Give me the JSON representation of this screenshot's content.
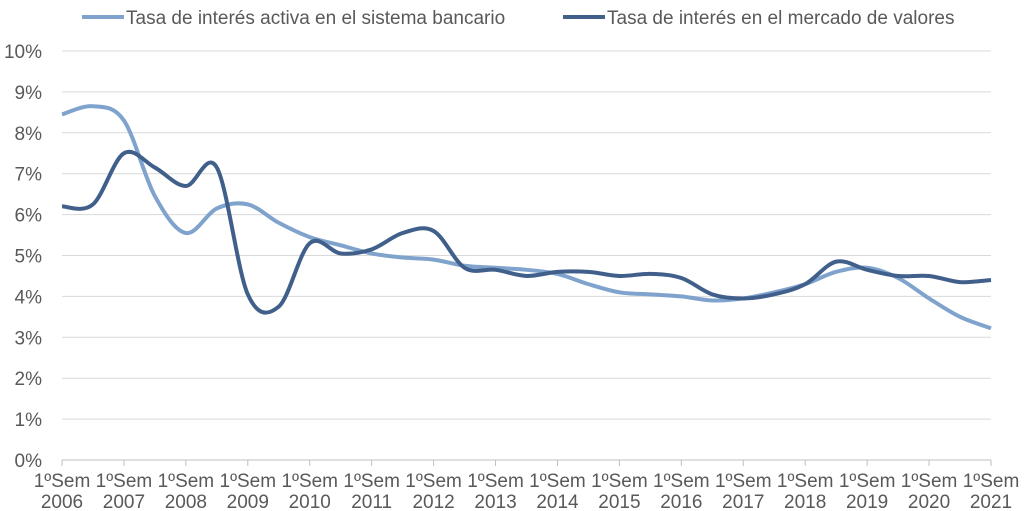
{
  "chart_data": {
    "type": "line",
    "title": "",
    "xlabel": "",
    "ylabel": "",
    "categories": [
      [
        "1ºSem",
        "2006"
      ],
      [
        "1ºSem",
        "2007"
      ],
      [
        "1ºSem",
        "2008"
      ],
      [
        "1ºSem",
        "2009"
      ],
      [
        "1ºSem",
        "2010"
      ],
      [
        "1ºSem",
        "2011"
      ],
      [
        "1ºSem",
        "2012"
      ],
      [
        "1ºSem",
        "2013"
      ],
      [
        "1ºSem",
        "2014"
      ],
      [
        "1ºSem",
        "2015"
      ],
      [
        "1ºSem",
        "2016"
      ],
      [
        "1ºSem",
        "2017"
      ],
      [
        "1ºSem",
        "2018"
      ],
      [
        "1ºSem",
        "2019"
      ],
      [
        "1ºSem",
        "2020"
      ],
      [
        "1ºSem",
        "2021"
      ]
    ],
    "x": [
      2006.0,
      2006.5,
      2007.0,
      2007.5,
      2008.0,
      2008.5,
      2009.0,
      2009.5,
      2010.0,
      2010.5,
      2011.0,
      2011.5,
      2012.0,
      2012.5,
      2013.0,
      2013.5,
      2014.0,
      2014.5,
      2015.0,
      2015.5,
      2016.0,
      2016.5,
      2017.0,
      2017.5,
      2018.0,
      2018.5,
      2019.0,
      2019.5,
      2020.0,
      2020.5,
      2021.0
    ],
    "yticks": [
      "0%",
      "1%",
      "2%",
      "3%",
      "4%",
      "5%",
      "6%",
      "7%",
      "8%",
      "9%",
      "10%"
    ],
    "ylim": [
      0,
      10
    ],
    "y_unit": "%",
    "grid": "horizontal",
    "legend_position": "top",
    "series": [
      {
        "name": "Tasa de interés activa en el sistema bancario",
        "color": "#7fa3cd",
        "values": [
          8.45,
          8.65,
          8.3,
          6.45,
          5.55,
          6.15,
          6.25,
          5.8,
          5.45,
          5.25,
          5.05,
          4.95,
          4.9,
          4.75,
          4.7,
          4.65,
          4.55,
          4.3,
          4.1,
          4.05,
          4.0,
          3.9,
          3.95,
          4.1,
          4.3,
          4.6,
          4.7,
          4.45,
          3.95,
          3.5,
          3.22
        ]
      },
      {
        "name": "Tasa de interés en el mercado de valores",
        "color": "#40608b",
        "values": [
          6.2,
          6.25,
          7.5,
          7.15,
          6.7,
          7.15,
          4.05,
          3.75,
          5.3,
          5.05,
          5.15,
          5.55,
          5.6,
          4.7,
          4.65,
          4.5,
          4.6,
          4.6,
          4.5,
          4.55,
          4.45,
          4.05,
          3.95,
          4.05,
          4.3,
          4.85,
          4.65,
          4.5,
          4.5,
          4.35,
          4.4
        ]
      }
    ]
  }
}
